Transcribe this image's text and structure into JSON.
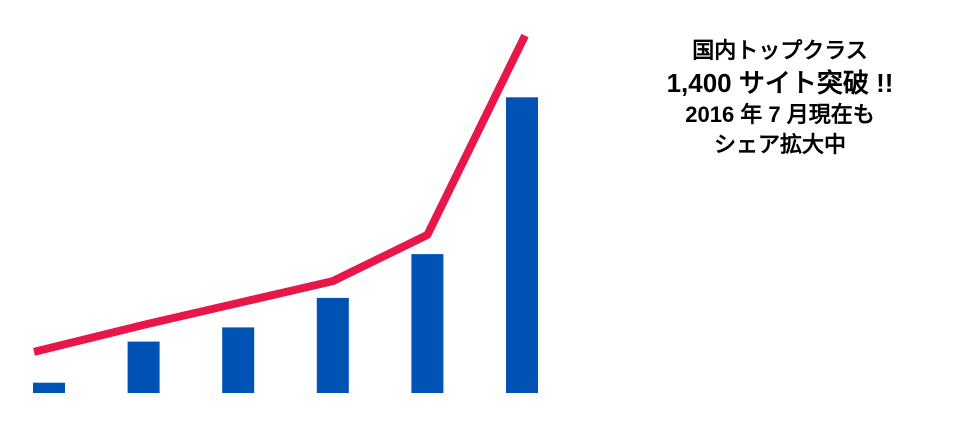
{
  "caption": {
    "line1": "国内トップクラス",
    "line2": "1,400 サイト突破 !!",
    "line3": "2016 年 7 月現在も",
    "line4": "シェア拡大中"
  },
  "colors": {
    "bar": "#0052b4",
    "line": "#e8174a",
    "text": "#000000",
    "background": "#ffffff"
  },
  "chart_data": {
    "type": "bar",
    "categories": [
      "",
      "",
      "",
      "",
      "",
      ""
    ],
    "series": [
      {
        "type": "bar",
        "values": [
          40,
          200,
          255,
          370,
          540,
          1150
        ]
      },
      {
        "type": "line",
        "values": [
          160,
          265,
          350,
          435,
          615,
          1390
        ]
      }
    ],
    "ylim": [
      0,
      1400
    ],
    "grid": false,
    "legend": "none",
    "axes_visible": false
  }
}
